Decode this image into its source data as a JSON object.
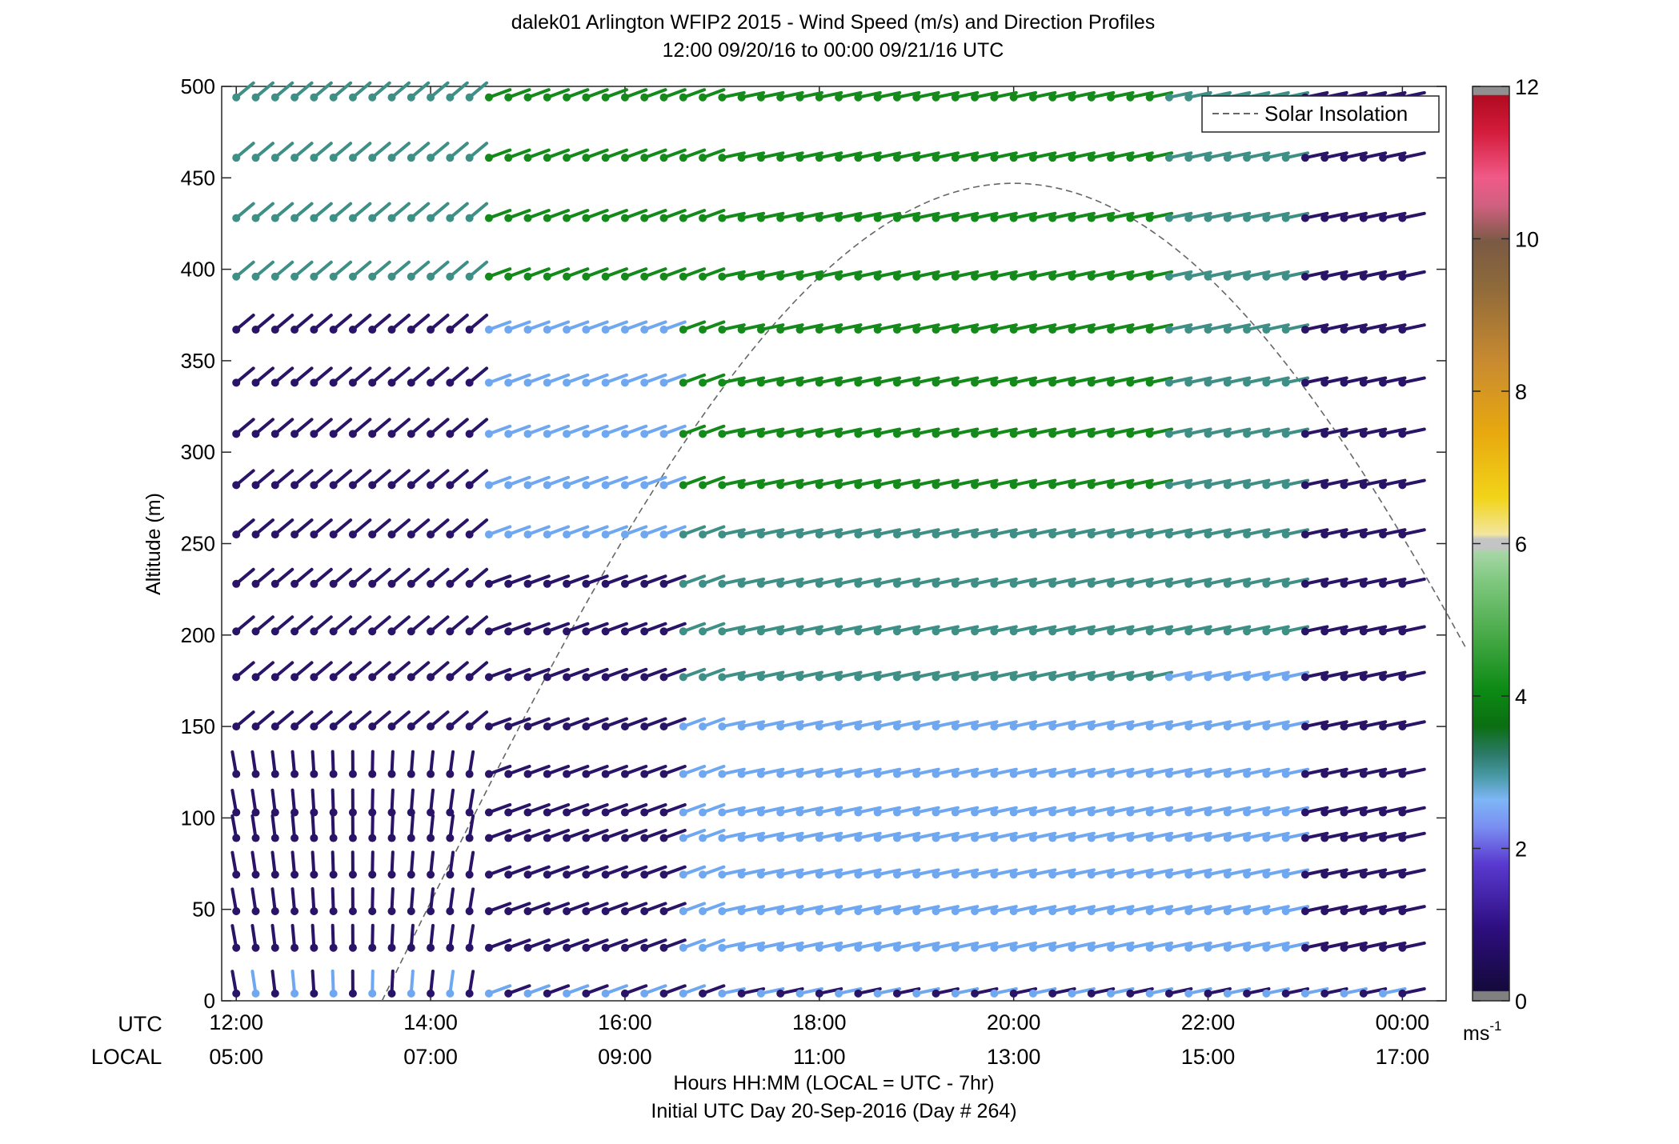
{
  "chart_data": {
    "type": "wind-barb-profile",
    "title_line1": "dalek01 Arlington WFIP2 2015 - Wind Speed (m/s) and Direction Profiles",
    "title_line2": "12:00 09/20/16 to 00:00 09/21/16  UTC",
    "ylabel": "Altitude (m)",
    "xlabel_line1": "Hours HH:MM  (LOCAL = UTC - 7hr)",
    "xlabel_line2": "Initial UTC Day 20-Sep-2016 (Day # 264)",
    "utc_row_label": "UTC",
    "local_row_label": "LOCAL",
    "ylim": [
      0,
      500
    ],
    "y_ticks": [
      0,
      50,
      100,
      150,
      200,
      250,
      300,
      350,
      400,
      450,
      500
    ],
    "x_range_hours_utc": [
      11.85,
      24.45
    ],
    "x_ticks": [
      {
        "hour": 12,
        "utc": "12:00",
        "local": "05:00"
      },
      {
        "hour": 14,
        "utc": "14:00",
        "local": "07:00"
      },
      {
        "hour": 16,
        "utc": "16:00",
        "local": "09:00"
      },
      {
        "hour": 18,
        "utc": "18:00",
        "local": "11:00"
      },
      {
        "hour": 20,
        "utc": "20:00",
        "local": "13:00"
      },
      {
        "hour": 22,
        "utc": "22:00",
        "local": "15:00"
      },
      {
        "hour": 24,
        "utc": "00:00",
        "local": "17:00"
      }
    ],
    "colorbar": {
      "label": "ms",
      "label_exponent": "-1",
      "range": [
        0,
        12
      ],
      "ticks": [
        0,
        2,
        4,
        6,
        8,
        10,
        12
      ]
    },
    "legend": {
      "label": "Solar Insolation",
      "placement": "top-right",
      "style": "dashed",
      "color": "#666666"
    },
    "solar_curve": {
      "peak_hour": 20.0,
      "half_width_hours": 6.5,
      "peak_altitude": 447
    },
    "profile_times_hours": [
      12.0,
      12.2,
      12.4,
      12.6,
      12.8,
      13.0,
      13.2,
      13.4,
      13.6,
      13.8,
      14.0,
      14.2,
      14.4,
      14.6,
      14.8,
      15.0,
      15.2,
      15.4,
      15.6,
      15.8,
      16.0,
      16.2,
      16.4,
      16.6,
      16.8,
      17.0,
      17.2,
      17.4,
      17.6,
      17.8,
      18.0,
      18.2,
      18.4,
      18.6,
      18.8,
      19.0,
      19.2,
      19.4,
      19.6,
      19.8,
      20.0,
      20.2,
      20.4,
      20.6,
      20.8,
      21.0,
      21.2,
      21.4,
      21.6,
      21.8,
      22.0,
      22.2,
      22.4,
      22.6,
      22.8,
      23.0,
      23.2,
      23.4,
      23.6,
      23.8,
      24.0
    ],
    "altitudes_m": [
      4,
      29,
      49,
      69,
      89,
      103,
      124,
      150,
      177,
      202,
      228,
      255,
      282,
      310,
      338,
      367,
      396,
      428,
      461,
      494
    ],
    "colors": {
      "low_speed": "#2a1468",
      "light_blue": "#6fa8f0",
      "teal": "#3e8f86",
      "green": "#138a1a",
      "light_green": "#8fd08f"
    }
  }
}
